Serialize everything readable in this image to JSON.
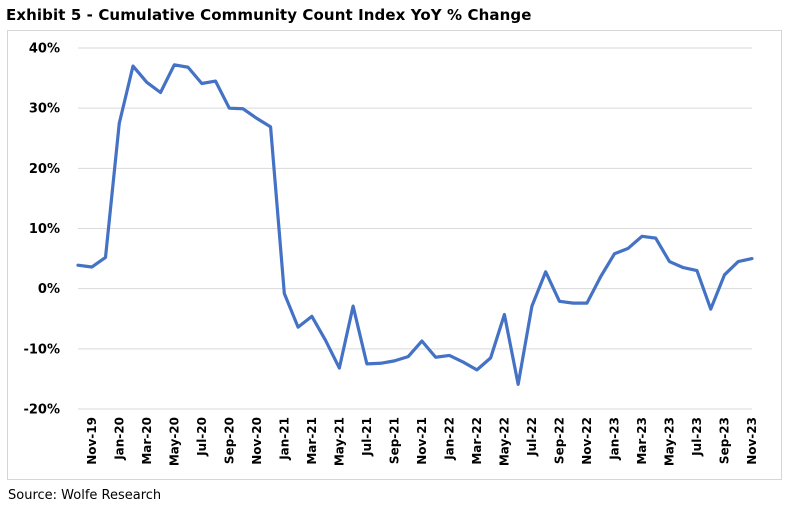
{
  "chart_data": {
    "type": "line",
    "title": "Exhibit 5 - Cumulative Community Count Index YoY % Change",
    "source": "Source: Wolfe Research",
    "xlabel": "",
    "ylabel": "",
    "ylim": [
      -20,
      40
    ],
    "yticks": [
      40,
      30,
      20,
      10,
      0,
      -10,
      -20
    ],
    "ytick_labels": [
      "40%",
      "30%",
      "20%",
      "10%",
      "0%",
      "-10%",
      "-20%"
    ],
    "grid": true,
    "color": "#4472C4",
    "x_tick_labels": [
      "Nov-19",
      "Jan-20",
      "Mar-20",
      "May-20",
      "Jul-20",
      "Sep-20",
      "Nov-20",
      "Jan-21",
      "Mar-21",
      "May-21",
      "Jul-21",
      "Sep-21",
      "Nov-21",
      "Jan-22",
      "Mar-22",
      "May-22",
      "Jul-22",
      "Sep-22",
      "Nov-22",
      "Jan-23",
      "Mar-23",
      "May-23",
      "Jul-23",
      "Sep-23",
      "Nov-23"
    ],
    "series": [
      {
        "name": "Cumulative Community Count Index YoY % Change",
        "x": [
          "Oct-19",
          "Nov-19",
          "Dec-19",
          "Jan-20",
          "Feb-20",
          "Mar-20",
          "Apr-20",
          "May-20",
          "Jun-20",
          "Jul-20",
          "Aug-20",
          "Sep-20",
          "Oct-20",
          "Nov-20",
          "Dec-20",
          "Jan-21",
          "Feb-21",
          "Mar-21",
          "Apr-21",
          "May-21",
          "Jun-21",
          "Jul-21",
          "Aug-21",
          "Sep-21",
          "Oct-21",
          "Nov-21",
          "Dec-21",
          "Jan-22",
          "Feb-22",
          "Mar-22",
          "Apr-22",
          "May-22",
          "Jun-22",
          "Jul-22",
          "Aug-22",
          "Sep-22",
          "Oct-22",
          "Nov-22",
          "Dec-22",
          "Jan-23",
          "Feb-23",
          "Mar-23",
          "Apr-23",
          "May-23",
          "Jun-23",
          "Jul-23",
          "Aug-23",
          "Sep-23",
          "Oct-23",
          "Nov-23"
        ],
        "values": [
          3.9,
          3.6,
          5.2,
          27.5,
          37.0,
          34.3,
          32.6,
          37.2,
          36.8,
          34.1,
          34.5,
          30.0,
          29.9,
          28.3,
          26.9,
          -0.8,
          -6.4,
          -4.6,
          -8.6,
          -13.2,
          -2.9,
          -12.5,
          -12.4,
          -12.0,
          -11.3,
          -8.7,
          -11.4,
          -11.1,
          -12.2,
          -13.5,
          -11.5,
          -4.3,
          -15.9,
          -2.9,
          2.8,
          -2.1,
          -2.4,
          -2.4,
          2.0,
          5.8,
          6.7,
          8.7,
          8.4,
          4.5,
          3.5,
          3.0,
          -3.4,
          2.3,
          4.5,
          5.0
        ]
      }
    ]
  }
}
